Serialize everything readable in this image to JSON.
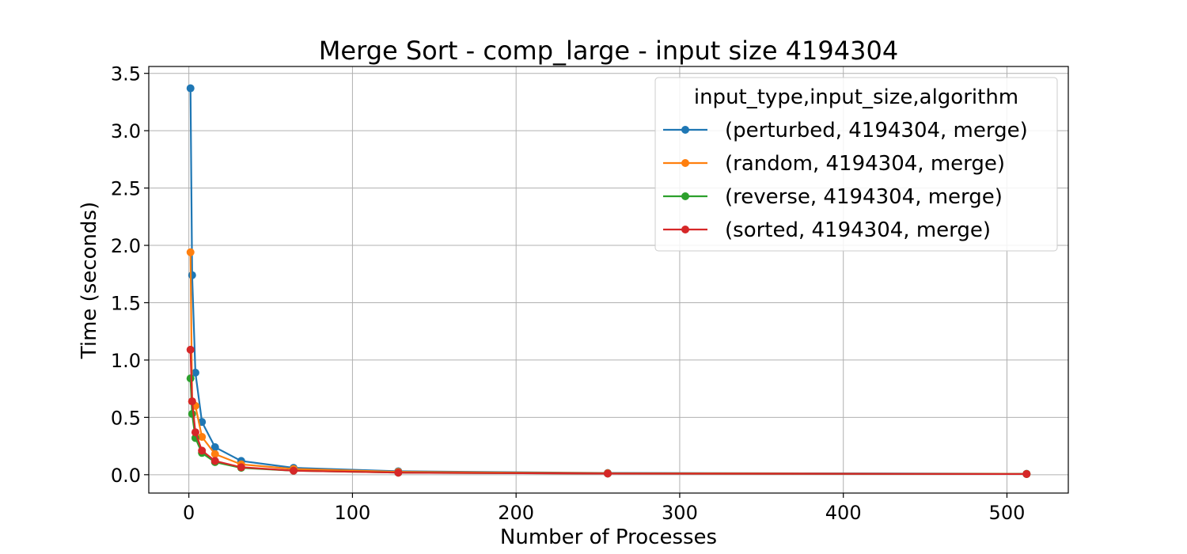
{
  "chart_data": {
    "type": "line",
    "title": "Merge Sort - comp_large - input size 4194304",
    "xlabel": "Number of Processes",
    "ylabel": "Time (seconds)",
    "xlim": [
      -24.5,
      537.5
    ],
    "ylim": [
      -0.16,
      3.56
    ],
    "xticks": [
      0,
      100,
      200,
      300,
      400,
      500
    ],
    "yticks": [
      0.0,
      0.5,
      1.0,
      1.5,
      2.0,
      2.5,
      3.0,
      3.5
    ],
    "xtick_labels": [
      "0",
      "100",
      "200",
      "300",
      "400",
      "500"
    ],
    "ytick_labels": [
      "0.0",
      "0.5",
      "1.0",
      "1.5",
      "2.0",
      "2.5",
      "3.0",
      "3.5"
    ],
    "grid": true,
    "legend": {
      "title": "input_type,input_size,algorithm",
      "placement": "top-right"
    },
    "x": [
      2,
      4,
      8,
      16,
      32,
      64,
      128,
      256,
      512
    ],
    "series": [
      {
        "name": "(perturbed, 4194304, merge)",
        "color": "#1f77b4",
        "x": [
          1,
          2,
          4,
          8,
          16,
          32,
          64,
          128,
          256,
          512
        ],
        "values": [
          3.37,
          1.74,
          0.89,
          0.46,
          0.24,
          0.12,
          0.06,
          0.03,
          0.015,
          0.008
        ]
      },
      {
        "name": "(random, 4194304, merge)",
        "color": "#ff7f0e",
        "x": [
          1,
          2,
          4,
          8,
          16,
          32,
          64,
          128,
          256,
          512
        ],
        "values": [
          1.94,
          0.64,
          0.6,
          0.33,
          0.18,
          0.09,
          0.05,
          0.025,
          0.013,
          0.007
        ]
      },
      {
        "name": "(reverse, 4194304, merge)",
        "color": "#2ca02c",
        "x": [
          1,
          2,
          4,
          8,
          16,
          32,
          64,
          128,
          256,
          512
        ],
        "values": [
          0.84,
          0.53,
          0.32,
          0.19,
          0.11,
          0.06,
          0.035,
          0.018,
          0.01,
          0.006
        ]
      },
      {
        "name": "(sorted, 4194304, merge)",
        "color": "#d62728",
        "x": [
          1,
          2,
          4,
          8,
          16,
          32,
          64,
          128,
          256,
          512
        ],
        "values": [
          1.09,
          0.64,
          0.37,
          0.21,
          0.12,
          0.065,
          0.035,
          0.018,
          0.01,
          0.006
        ]
      }
    ]
  }
}
